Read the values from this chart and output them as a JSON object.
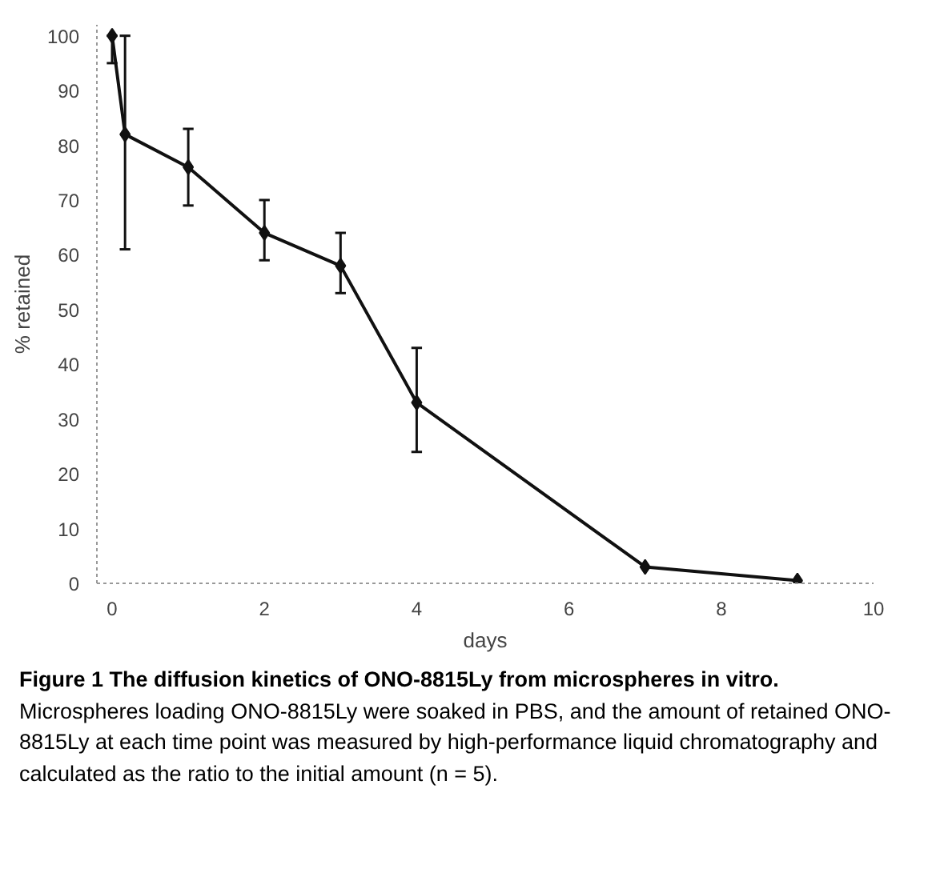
{
  "chart_data": {
    "type": "line",
    "title": "Figure 1 The diffusion kinetics of ONO-8815Ly from microspheres in vitro.",
    "xlabel": "days",
    "ylabel": "% retained",
    "annotations": [
      "Microspheres loading ONO-8815Ly were soaked in PBS, and the amount of retained ONO-8815Ly at each time point was measured by high-performance liquid chromatography and calculated as the ratio to the initial amount (n = 5)."
    ],
    "x": [
      0,
      0.17,
      1,
      2,
      3,
      4,
      7,
      9
    ],
    "series": [
      {
        "color": "#111111",
        "values": [
          100,
          82,
          76,
          64,
          58,
          33,
          3,
          0.5
        ],
        "errors": [
          [
            95,
            100
          ],
          [
            61,
            100
          ],
          [
            69,
            83
          ],
          [
            59,
            70
          ],
          [
            53,
            64
          ],
          [
            24,
            43
          ],
          null,
          null
        ]
      }
    ],
    "xlim": [
      -0.2,
      10
    ],
    "ylim": [
      0,
      102
    ],
    "xticks": [
      0,
      2,
      4,
      6,
      8,
      10
    ],
    "yticks": [
      0,
      10,
      20,
      30,
      40,
      50,
      60,
      70,
      80,
      90,
      100
    ],
    "grid": false,
    "marker": "diamond",
    "line_style": "solid"
  }
}
